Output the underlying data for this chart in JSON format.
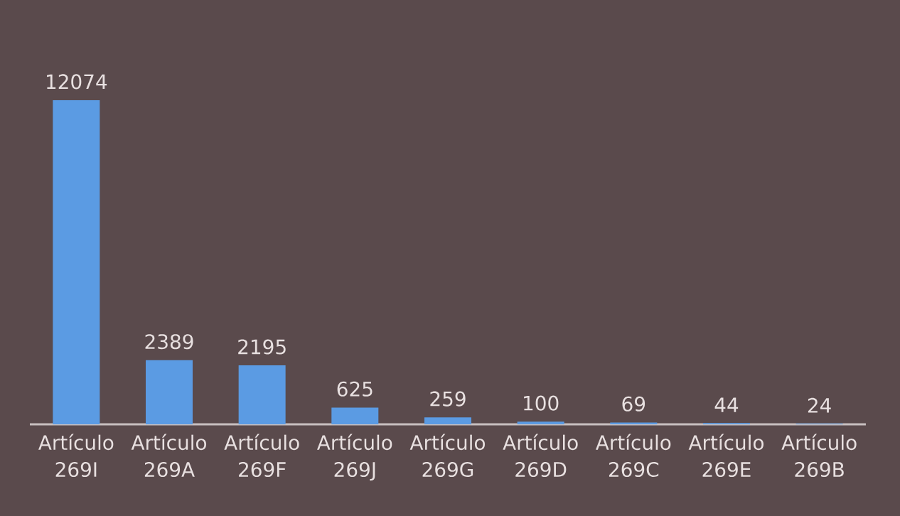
{
  "chart_data": {
    "type": "bar",
    "categories": [
      "Artículo 269I",
      "Artículo 269A",
      "Artículo 269F",
      "Artículo 269J",
      "Artículo 269G",
      "Artículo 269D",
      "Artículo 269C",
      "Artículo 269E",
      "Artículo 269B"
    ],
    "values": [
      12074,
      2389,
      2195,
      625,
      259,
      100,
      69,
      44,
      24
    ],
    "color": "#5b9be3",
    "data_labels": true
  }
}
